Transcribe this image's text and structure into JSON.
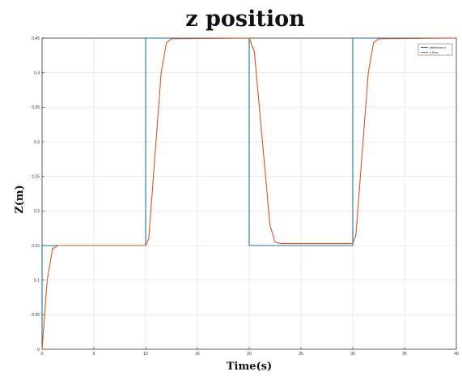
{
  "chart_data": {
    "type": "line",
    "title": "z position",
    "xlabel": "Time(s)",
    "ylabel": "Z(m)",
    "xlim": [
      0,
      40
    ],
    "ylim": [
      0,
      0.45
    ],
    "xticks": [
      0,
      5,
      10,
      15,
      20,
      25,
      30,
      35,
      40
    ],
    "xtick_labels": [
      "0",
      "5",
      "10",
      "15",
      "20",
      "25",
      "30",
      "35",
      "40"
    ],
    "yticks": [
      0,
      0.05,
      0.1,
      0.15,
      0.2,
      0.25,
      0.3,
      0.35,
      0.4,
      0.45
    ],
    "ytick_labels": [
      "0",
      "0.05",
      "0.1",
      "0.15",
      "0.2",
      "0.25",
      "0.3",
      "0.35",
      "0.4",
      "0.45"
    ],
    "grid": true,
    "legend_position": "top-right",
    "series": [
      {
        "name": "reference z",
        "color": "#1f6fa8",
        "x": [
          0,
          0,
          10,
          10,
          20,
          20,
          30,
          30,
          40
        ],
        "y": [
          0,
          0.15,
          0.15,
          0.45,
          0.45,
          0.15,
          0.15,
          0.45,
          0.45
        ]
      },
      {
        "name": "z flow",
        "color": "#d95319",
        "x": [
          0,
          0.5,
          1.0,
          1.5,
          10,
          10.3,
          11.5,
          12.0,
          12.5,
          20,
          20.5,
          22.0,
          22.5,
          23.0,
          30,
          30.3,
          31.5,
          32.0,
          32.5,
          40
        ],
        "y": [
          0,
          0.1,
          0.145,
          0.15,
          0.15,
          0.16,
          0.4,
          0.443,
          0.449,
          0.45,
          0.43,
          0.18,
          0.155,
          0.153,
          0.153,
          0.165,
          0.4,
          0.443,
          0.449,
          0.45
        ]
      }
    ]
  }
}
